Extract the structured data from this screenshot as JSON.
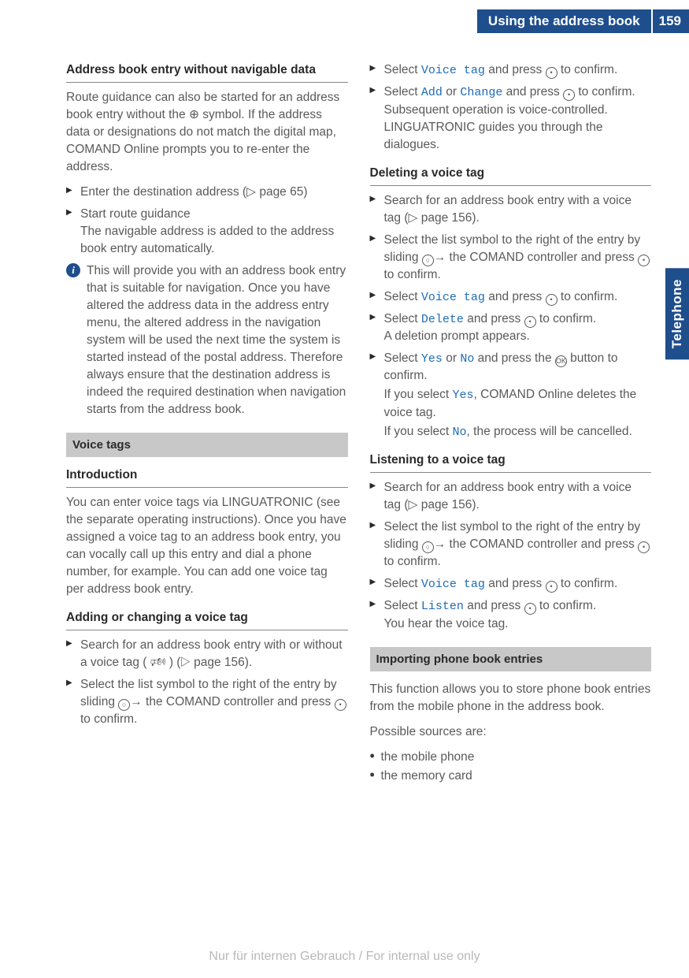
{
  "header": {
    "title": "Using the address book",
    "page_number": "159"
  },
  "side_tab": "Telephone",
  "colors": {
    "brand_blue": "#1f4e8c",
    "link_blue": "#1f6cb5",
    "text_gray": "#5a5a5a",
    "section_bg": "#c8c8c8"
  },
  "left": {
    "s1_title": "Address book entry without navigable data",
    "s1_para": "Route guidance can also be started for an address book entry without the ⊕ symbol. If the address data or designations do not match the digital map, COMAND Online prompts you to re-enter the address.",
    "s1_step1": "Enter the destination address (▷ page 65)",
    "s1_step2": "Start route guidance",
    "s1_step2b": "The navigable address is added to the address book entry automatically.",
    "s1_info": "This will provide you with an address book entry that is suitable for navigation. Once you have altered the address data in the address entry menu, the altered address in the navigation system will be used the next time the system is started instead of the postal address. Therefore always ensure that the destination address is indeed the required destination when navigation starts from the address book.",
    "bar_voice": "Voice tags",
    "s2_title": "Introduction",
    "s2_para": "You can enter voice tags via LINGUATRONIC (see the separate operating instructions). Once you have assigned a voice tag to an address book entry, you can vocally call up this entry and dial a phone number, for example. You can add one voice tag per address book entry.",
    "s3_title": "Adding or changing a voice tag",
    "s3_step1": "Search for an address book entry with or without a voice tag ( 🕬 ) (▷ page 156).",
    "s3_step2a": "Select the list symbol to the right of the entry by sliding ",
    "s3_step2b": " the COMAND controller and press ",
    "s3_step2c": " to confirm."
  },
  "right": {
    "r1_a": "Select ",
    "r1_code": "Voice tag",
    "r1_b": " and press ",
    "r1_c": " to confirm.",
    "r2_a": "Select ",
    "r2_code1": "Add",
    "r2_mid": " or ",
    "r2_code2": "Change",
    "r2_b": " and press ",
    "r2_c": " to confirm.",
    "r2_after": "Subsequent operation is voice-controlled. LINGUATRONIC guides you through the dialogues.",
    "s4_title": "Deleting a voice tag",
    "s4_step1": "Search for an address book entry with a voice tag (▷ page 156).",
    "s4_step2a": "Select the list symbol to the right of the entry by sliding ",
    "s4_step2b": " the COMAND controller and press ",
    "s4_step2c": " to confirm.",
    "s4_step3a": "Select ",
    "s4_step3code": "Voice tag",
    "s4_step3b": " and press ",
    "s4_step3c": " to confirm.",
    "s4_step4a": "Select ",
    "s4_step4code": "Delete",
    "s4_step4b": " and press ",
    "s4_step4c": " to confirm.",
    "s4_step4after": "A deletion prompt appears.",
    "s4_step5a": "Select ",
    "s4_step5yes": "Yes",
    "s4_step5mid": " or ",
    "s4_step5no": "No",
    "s4_step5b": " and press the ",
    "s4_step5c": " button to confirm.",
    "s4_after1a": "If you select ",
    "s4_after1code": "Yes",
    "s4_after1b": ", COMAND Online deletes the voice tag.",
    "s4_after2a": "If you select ",
    "s4_after2code": "No",
    "s4_after2b": ", the process will be cancelled.",
    "s5_title": "Listening to a voice tag",
    "s5_step1": "Search for an address book entry with a voice tag (▷ page 156).",
    "s5_step2a": "Select the list symbol to the right of the entry by sliding ",
    "s5_step2b": " the COMAND controller and press ",
    "s5_step2c": " to confirm.",
    "s5_step3a": "Select ",
    "s5_step3code": "Voice tag",
    "s5_step3b": " and press ",
    "s5_step3c": " to confirm.",
    "s5_step4a": "Select ",
    "s5_step4code": "Listen",
    "s5_step4b": " and press ",
    "s5_step4c": " to confirm.",
    "s5_after": "You hear the voice tag.",
    "bar_import": "Importing phone book entries",
    "s6_para1": "This function allows you to store phone book entries from the mobile phone in the address book.",
    "s6_para2": "Possible sources are:",
    "s6_b1": "the mobile phone",
    "s6_b2": "the memory card"
  },
  "watermark": "Nur für internen Gebrauch / For internal use only"
}
